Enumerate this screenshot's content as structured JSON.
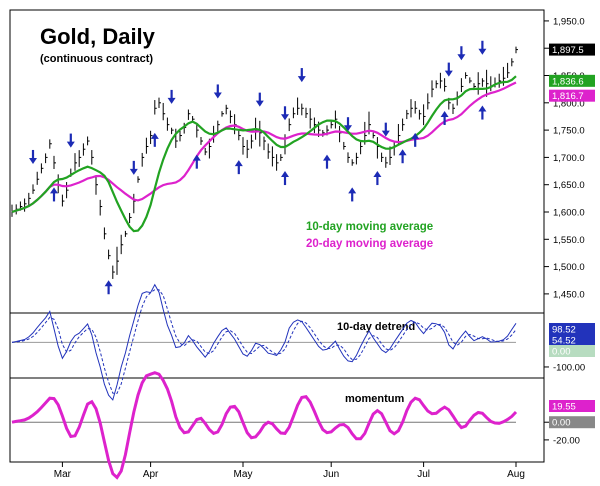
{
  "chart_data": {
    "type": "line",
    "title": "Gold, Daily",
    "subtitle": "(continuous contract)",
    "x_ticks": [
      "Mar",
      "Apr",
      "May",
      "Jun",
      "Jul",
      "Aug"
    ],
    "price_panel": {
      "y_ticks": [
        "1,950.0",
        "1,900.0",
        "1,850.0",
        "1,800.0",
        "1,750.0",
        "1,700.0",
        "1,650.0",
        "1,600.0",
        "1,550.0",
        "1,500.0",
        "1,450.0"
      ],
      "ylim": [
        1415,
        1970
      ],
      "series": [
        {
          "name": "10-day moving average",
          "color": "#22a322"
        },
        {
          "name": "20-day moving average",
          "color": "#dd22cc"
        }
      ],
      "last_values": [
        {
          "label": "1,897.5",
          "value": 1897.5,
          "bg": "#000000"
        },
        {
          "label": "1,836.6",
          "value": 1836.6,
          "bg": "#22a322"
        },
        {
          "label": "1,816.7",
          "value": 1816.7,
          "bg": "#dd22cc"
        }
      ],
      "closes": [
        1600,
        1605,
        1610,
        1615,
        1625,
        1640,
        1660,
        1680,
        1700,
        1725,
        1690,
        1650,
        1620,
        1640,
        1670,
        1690,
        1700,
        1715,
        1730,
        1700,
        1650,
        1610,
        1560,
        1520,
        1490,
        1510,
        1540,
        1560,
        1590,
        1620,
        1660,
        1700,
        1720,
        1740,
        1790,
        1800,
        1780,
        1760,
        1750,
        1730,
        1740,
        1755,
        1780,
        1770,
        1750,
        1730,
        1710,
        1720,
        1740,
        1760,
        1780,
        1790,
        1775,
        1760,
        1740,
        1720,
        1715,
        1730,
        1750,
        1745,
        1730,
        1710,
        1700,
        1690,
        1700,
        1720,
        1760,
        1780,
        1790,
        1790,
        1780,
        1770,
        1760,
        1750,
        1745,
        1750,
        1760,
        1770,
        1745,
        1720,
        1700,
        1690,
        1700,
        1720,
        1740,
        1760,
        1740,
        1720,
        1700,
        1690,
        1700,
        1720,
        1740,
        1760,
        1780,
        1790,
        1790,
        1780,
        1775,
        1800,
        1825,
        1835,
        1840,
        1830,
        1800,
        1790,
        1810,
        1830,
        1850,
        1840,
        1830,
        1835,
        1840,
        1835,
        1830,
        1835,
        1840,
        1845,
        1855,
        1875,
        1897.5
      ]
    },
    "detrend_panel": {
      "label": "10-day detrend",
      "y_ticks": [
        "-100.00"
      ],
      "ylim": [
        -145,
        120
      ],
      "last_values": [
        {
          "label": "98.52",
          "value": 98.52,
          "bg": "#2233bb"
        },
        {
          "label": "54.52",
          "value": 54.52,
          "bg": "#2233bb"
        },
        {
          "label": "0.00",
          "value": 0,
          "bg": "#b7dcc0"
        }
      ]
    },
    "momentum_panel": {
      "label": "momentum",
      "y_ticks": [
        "0.00",
        "-20.00"
      ],
      "ylim": [
        -45,
        50
      ],
      "last_values": [
        {
          "label": "19.55",
          "value": 19.55,
          "bg": "#dd22cc"
        },
        {
          "label": "0.00",
          "value": 0,
          "bg": "#888888"
        }
      ]
    },
    "arrows": {
      "color": "#1c2bb5",
      "down_at": [
        5,
        14,
        29,
        38,
        49,
        59,
        65,
        69,
        80,
        89,
        104,
        107,
        112
      ],
      "up_at": [
        10,
        23,
        34,
        44,
        54,
        65,
        75,
        81,
        87,
        93,
        96,
        103,
        112
      ]
    },
    "grid": false,
    "legend_placement": "center-right"
  }
}
